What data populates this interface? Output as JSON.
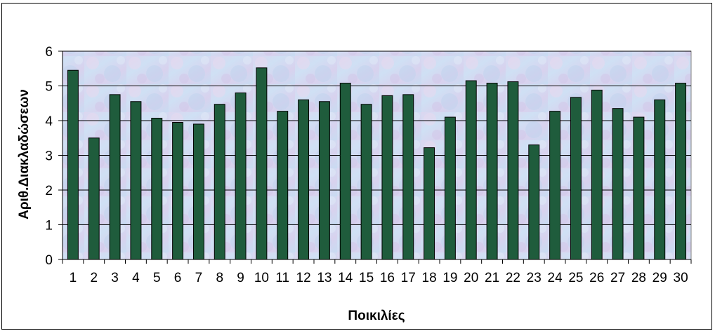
{
  "chart_data": {
    "type": "bar",
    "title": "",
    "xlabel": "Ποικιλίες",
    "ylabel": "Αριθ.Διακλαδώσεων",
    "categories": [
      "1",
      "2",
      "3",
      "4",
      "5",
      "6",
      "7",
      "8",
      "9",
      "10",
      "11",
      "12",
      "13",
      "14",
      "15",
      "16",
      "17",
      "18",
      "19",
      "20",
      "21",
      "22",
      "23",
      "24",
      "25",
      "26",
      "27",
      "28",
      "29",
      "30"
    ],
    "series": [
      {
        "values": [
          5.45,
          3.5,
          4.75,
          4.55,
          4.07,
          3.95,
          3.9,
          4.47,
          4.8,
          5.52,
          4.27,
          4.6,
          4.55,
          5.08,
          4.47,
          4.72,
          4.75,
          3.22,
          4.1,
          5.15,
          5.08,
          5.12,
          3.3,
          4.27,
          4.67,
          4.88,
          4.35,
          4.1,
          4.6,
          5.08
        ]
      }
    ],
    "yticks": [
      "0",
      "1",
      "2",
      "3",
      "4",
      "5",
      "6"
    ],
    "ylim": [
      0,
      6
    ],
    "grid": true,
    "legend": "none",
    "bar_color": "#1f5c3c"
  }
}
